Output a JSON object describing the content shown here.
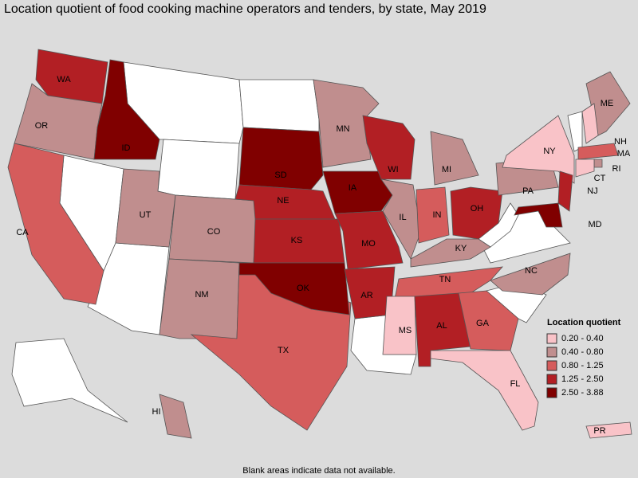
{
  "title": "Location quotient of food cooking machine operators and tenders, by state, May 2019",
  "footnote": "Blank areas indicate data not available.",
  "legend": {
    "title": "Location quotient",
    "items": [
      {
        "label": "0.20 - 0.40",
        "color": "#f9c3c8"
      },
      {
        "label": "0.40 - 0.80",
        "color": "#c08e8e"
      },
      {
        "label": "0.80 - 1.25",
        "color": "#d55c5c"
      },
      {
        "label": "1.25 - 2.50",
        "color": "#b21f24"
      },
      {
        "label": "2.50 - 3.88",
        "color": "#800000"
      }
    ]
  },
  "states": [
    {
      "label": "WA",
      "color": "#b21f24"
    },
    {
      "label": "OR",
      "color": "#c08e8e"
    },
    {
      "label": "ID",
      "color": "#800000"
    },
    {
      "label": "CA",
      "color": "#d55c5c"
    },
    {
      "label": "UT",
      "color": "#c08e8e"
    },
    {
      "label": "CO",
      "color": "#c08e8e"
    },
    {
      "label": "NM",
      "color": "#c08e8e"
    },
    {
      "label": "TX",
      "color": "#d55c5c"
    },
    {
      "label": "SD",
      "color": "#800000"
    },
    {
      "label": "NE",
      "color": "#b21f24"
    },
    {
      "label": "KS",
      "color": "#b21f24"
    },
    {
      "label": "OK",
      "color": "#800000"
    },
    {
      "label": "IA",
      "color": "#800000"
    },
    {
      "label": "MO",
      "color": "#b21f24"
    },
    {
      "label": "AR",
      "color": "#b21f24"
    },
    {
      "label": "MN",
      "color": "#c08e8e"
    },
    {
      "label": "WI",
      "color": "#b21f24"
    },
    {
      "label": "IL",
      "color": "#c08e8e"
    },
    {
      "label": "MI",
      "color": "#c08e8e"
    },
    {
      "label": "IN",
      "color": "#d55c5c"
    },
    {
      "label": "OH",
      "color": "#b21f24"
    },
    {
      "label": "KY",
      "color": "#c08e8e"
    },
    {
      "label": "TN",
      "color": "#d55c5c"
    },
    {
      "label": "MS",
      "color": "#f9c3c8"
    },
    {
      "label": "AL",
      "color": "#b21f24"
    },
    {
      "label": "GA",
      "color": "#d55c5c"
    },
    {
      "label": "FL",
      "color": "#f9c3c8"
    },
    {
      "label": "NC",
      "color": "#c08e8e"
    },
    {
      "label": "PA",
      "color": "#c08e8e"
    },
    {
      "label": "NY",
      "color": "#f9c3c8"
    },
    {
      "label": "ME",
      "color": "#c08e8e"
    },
    {
      "label": "NH",
      "color": "#f9c3c8"
    },
    {
      "label": "MA",
      "color": "#d55c5c"
    },
    {
      "label": "RI",
      "color": "#c08e8e"
    },
    {
      "label": "CT",
      "color": "#f9c3c8"
    },
    {
      "label": "NJ",
      "color": "#b21f24"
    },
    {
      "label": "MD",
      "color": "#800000"
    },
    {
      "label": "HI",
      "color": "#c08e8e"
    },
    {
      "label": "PR",
      "color": "#f9c3c8"
    }
  ]
}
